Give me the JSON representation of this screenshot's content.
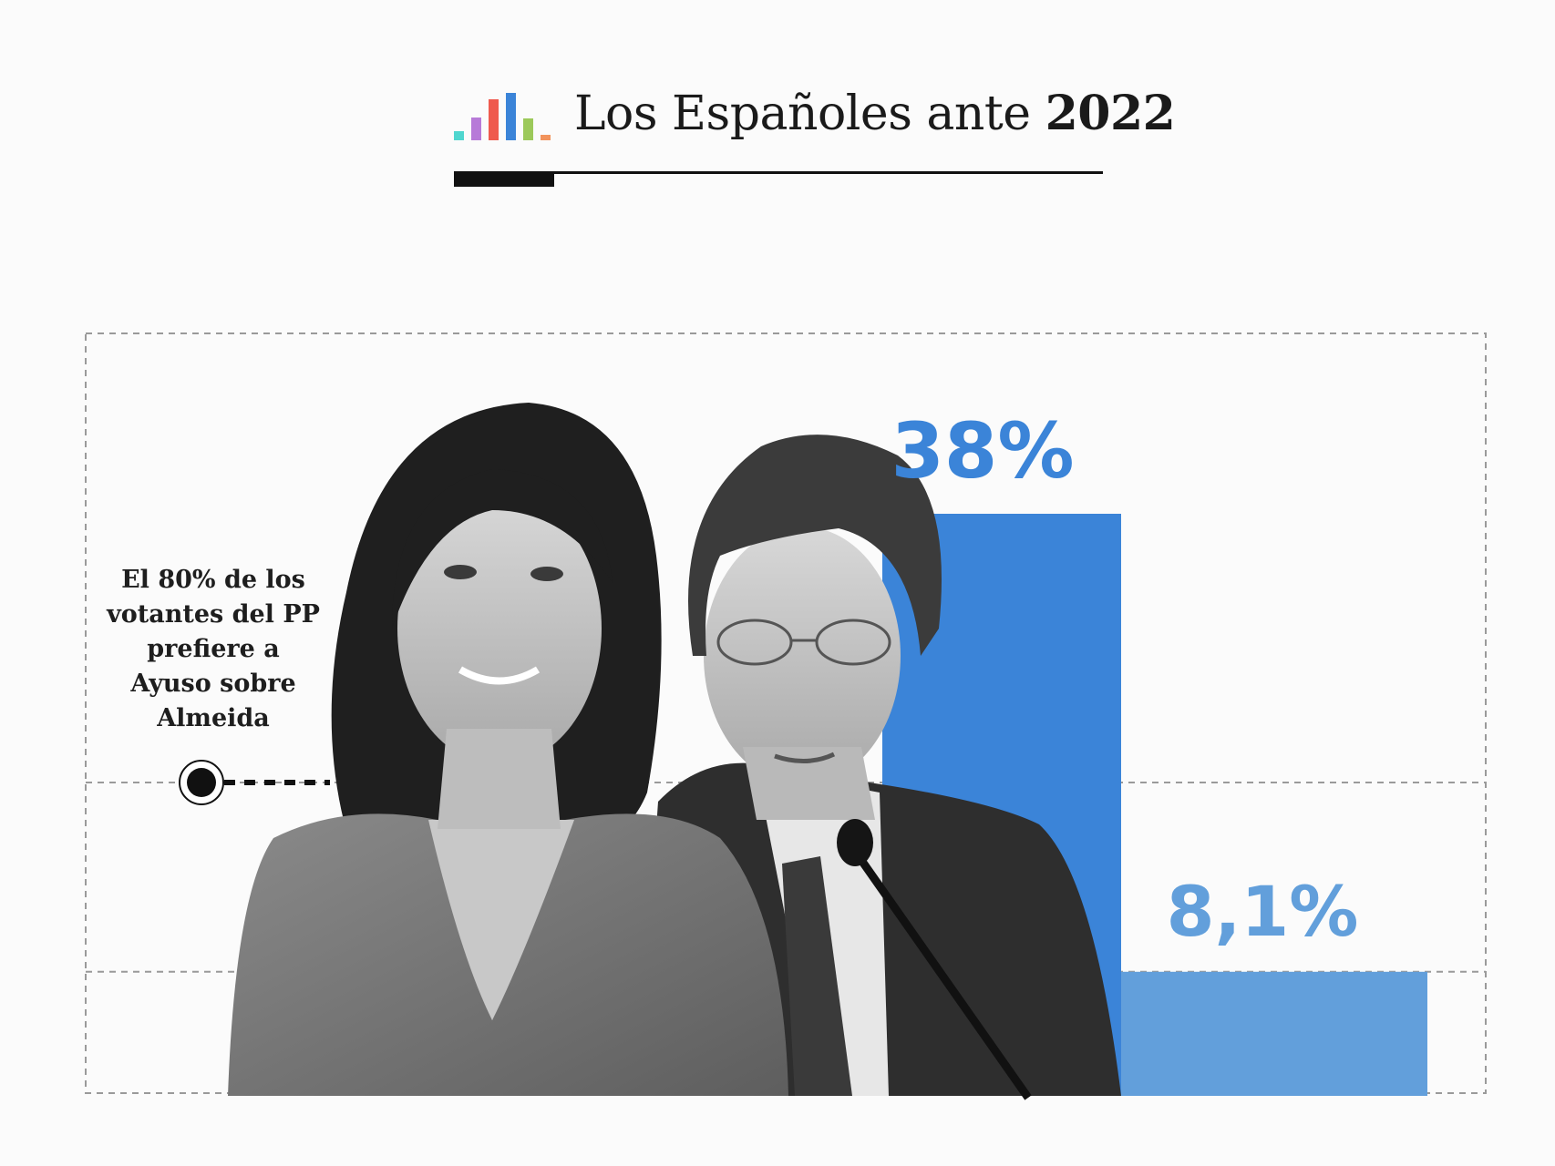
{
  "header": {
    "title_prefix": "Los Españoles ante ",
    "title_bold": "2022",
    "logo_colors": [
      "#4fd6cf",
      "#b77ad8",
      "#ef5a4e",
      "#3b84d8",
      "#9cc95a",
      "#f2935c"
    ]
  },
  "annotation": {
    "lines": [
      "El 80% de los",
      "votantes del PP",
      "prefiere a",
      "Ayuso sobre",
      "Almeida"
    ]
  },
  "photo": {
    "description": ""
  },
  "chart_data": {
    "type": "bar",
    "categories": [
      "",
      ""
    ],
    "values": [
      38,
      8.1
    ],
    "labels": [
      "38%",
      "8,1%"
    ],
    "colors": [
      "#3b84d8",
      "#629fdb"
    ],
    "ylim": [
      0,
      80
    ],
    "gridlines": [
      0,
      8.1,
      38
    ],
    "annotation_value": 80,
    "grid": "dashed",
    "legend": "none"
  }
}
